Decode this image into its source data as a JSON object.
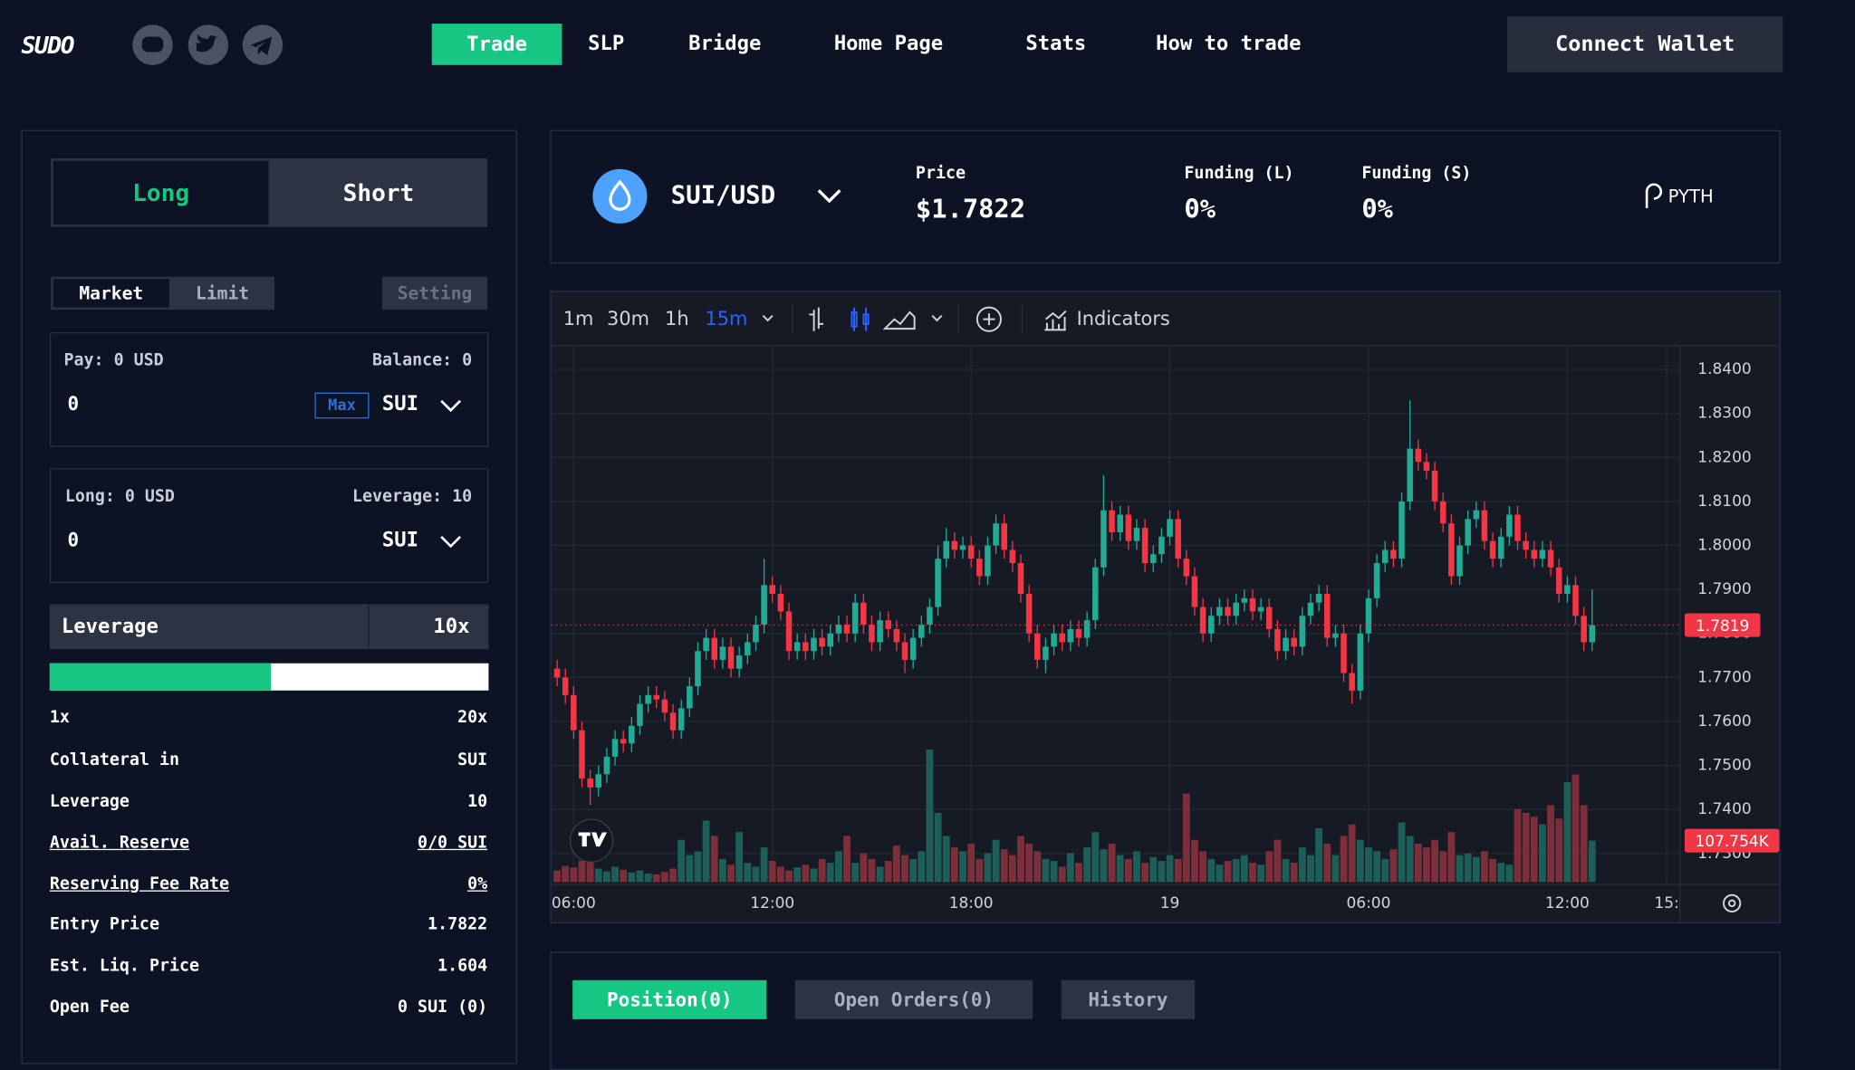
{
  "header": {
    "logo": "SUDO",
    "nav": [
      "Trade",
      "SLP",
      "Bridge",
      "Home Page",
      "Stats",
      "How to trade"
    ],
    "connect": "Connect Wallet"
  },
  "sidebar": {
    "side_tabs": [
      "Long",
      "Short"
    ],
    "order_tabs": [
      "Market",
      "Limit"
    ],
    "setting": "Setting",
    "pay": {
      "label": "Pay: 0 USD",
      "balance": "Balance: 0",
      "amount": "0",
      "max": "Max",
      "token": "SUI"
    },
    "long": {
      "label": "Long: 0 USD",
      "leverage": "Leverage: 10",
      "amount": "0",
      "token": "SUI"
    },
    "leverage": {
      "label": "Leverage",
      "value": "10x",
      "min": "1x",
      "max": "20x"
    },
    "rows": [
      [
        "Collateral in",
        "SUI"
      ],
      [
        "Leverage",
        "10"
      ],
      [
        "Avail. Reserve",
        "0/0 SUI"
      ],
      [
        "Reserving Fee Rate",
        "0%"
      ],
      [
        "Entry Price",
        "1.7822"
      ],
      [
        "Est. Liq. Price",
        "1.604"
      ],
      [
        "Open Fee",
        "0 SUI (0)"
      ]
    ]
  },
  "market": {
    "pair": "SUI/USD",
    "price_label": "Price",
    "price": "$1.7822",
    "funding_l_label": "Funding (L)",
    "funding_l": "0%",
    "funding_s_label": "Funding (S)",
    "funding_s": "0%",
    "oracle": "PYTH"
  },
  "toolbar": {
    "intervals": [
      "1m",
      "30m",
      "1h",
      "15m"
    ],
    "indicators": "Indicators"
  },
  "chart_data": {
    "type": "candlestick",
    "up_color": "#22ab94",
    "down_color": "#f23645",
    "volume_up_color": "#1d5f58",
    "volume_down_color": "#7c2f3a",
    "grid": true,
    "xlim": [
      -0.7,
      135.6
    ],
    "xticks": [
      {
        "value": 2,
        "label": "06:00"
      },
      {
        "value": 26,
        "label": "12:00"
      },
      {
        "value": 50,
        "label": "18:00"
      },
      {
        "value": 74,
        "label": "19"
      },
      {
        "value": 98,
        "label": "06:00"
      },
      {
        "value": 122,
        "label": "12:00"
      },
      {
        "value": 134,
        "label": "15:"
      }
    ],
    "ylim": [
      1.7235,
      1.8455
    ],
    "yticks": [
      {
        "value": 1.84,
        "label": "1.8400"
      },
      {
        "value": 1.83,
        "label": "1.8300"
      },
      {
        "value": 1.82,
        "label": "1.8200"
      },
      {
        "value": 1.81,
        "label": "1.8100"
      },
      {
        "value": 1.8,
        "label": "1.8000"
      },
      {
        "value": 1.79,
        "label": "1.7900"
      },
      {
        "value": 1.78,
        "label": "1.7800"
      },
      {
        "value": 1.77,
        "label": "1.7700"
      },
      {
        "value": 1.76,
        "label": "1.7600"
      },
      {
        "value": 1.75,
        "label": "1.7500"
      },
      {
        "value": 1.74,
        "label": "1.7400"
      },
      {
        "value": 1.73,
        "label": "1.7300"
      }
    ],
    "volume_ylim": [
      0,
      1397000
    ],
    "last_volume": {
      "value": 107754,
      "label": "107.754K"
    },
    "open": [
      1.772,
      1.77,
      1.766,
      1.758,
      1.747,
      1.745,
      1.748,
      1.752,
      1.756,
      1.755,
      1.759,
      1.764,
      1.766,
      1.765,
      1.762,
      1.758,
      1.763,
      1.768,
      1.776,
      1.779,
      1.774,
      1.777,
      1.772,
      1.775,
      1.778,
      1.782,
      1.791,
      1.789,
      1.785,
      1.776,
      1.778,
      1.776,
      1.779,
      1.777,
      1.78,
      1.782,
      1.78,
      1.787,
      1.782,
      1.778,
      1.783,
      1.781,
      1.778,
      1.774,
      1.779,
      1.782,
      1.786,
      1.797,
      1.801,
      1.799,
      1.8,
      1.797,
      1.793,
      1.8,
      1.805,
      1.799,
      1.796,
      1.789,
      1.78,
      1.774,
      1.777,
      1.78,
      1.778,
      1.781,
      1.779,
      1.783,
      1.795,
      1.808,
      1.803,
      1.807,
      1.801,
      1.804,
      1.796,
      1.798,
      1.802,
      1.806,
      1.797,
      1.793,
      1.786,
      1.78,
      1.784,
      1.786,
      1.784,
      1.787,
      1.788,
      1.785,
      1.786,
      1.781,
      1.776,
      1.779,
      1.777,
      1.784,
      1.787,
      1.789,
      1.779,
      1.78,
      1.771,
      1.767,
      1.78,
      1.788,
      1.796,
      1.799,
      1.797,
      1.81,
      1.822,
      1.819,
      1.817,
      1.81,
      1.805,
      1.793,
      1.8,
      1.806,
      1.808,
      1.801,
      1.797,
      1.802,
      1.807,
      1.801,
      1.799,
      1.797,
      1.799,
      1.795,
      1.789,
      1.791,
      1.784,
      1.778
    ],
    "high": [
      1.774,
      1.772,
      1.768,
      1.76,
      1.749,
      1.75,
      1.754,
      1.758,
      1.758,
      1.761,
      1.766,
      1.768,
      1.768,
      1.767,
      1.764,
      1.765,
      1.77,
      1.778,
      1.781,
      1.781,
      1.779,
      1.779,
      1.777,
      1.78,
      1.784,
      1.797,
      1.793,
      1.791,
      1.787,
      1.78,
      1.78,
      1.781,
      1.781,
      1.782,
      1.784,
      1.784,
      1.789,
      1.789,
      1.784,
      1.785,
      1.785,
      1.783,
      1.78,
      1.781,
      1.784,
      1.788,
      1.8,
      1.804,
      1.803,
      1.802,
      1.802,
      1.799,
      1.802,
      1.807,
      1.807,
      1.801,
      1.798,
      1.791,
      1.782,
      1.779,
      1.782,
      1.782,
      1.783,
      1.783,
      1.785,
      1.797,
      1.816,
      1.81,
      1.809,
      1.809,
      1.806,
      1.806,
      1.8,
      1.804,
      1.808,
      1.808,
      1.799,
      1.795,
      1.788,
      1.786,
      1.788,
      1.788,
      1.789,
      1.79,
      1.79,
      1.788,
      1.788,
      1.783,
      1.781,
      1.781,
      1.786,
      1.789,
      1.791,
      1.791,
      1.782,
      1.782,
      1.773,
      1.782,
      1.79,
      1.798,
      1.801,
      1.801,
      1.812,
      1.833,
      1.824,
      1.821,
      1.819,
      1.812,
      1.807,
      1.802,
      1.808,
      1.81,
      1.81,
      1.803,
      1.804,
      1.809,
      1.809,
      1.803,
      1.801,
      1.801,
      1.801,
      1.797,
      1.793,
      1.793,
      1.786,
      1.79
    ],
    "low": [
      1.768,
      1.764,
      1.756,
      1.745,
      1.741,
      1.743,
      1.746,
      1.75,
      1.753,
      1.753,
      1.757,
      1.762,
      1.763,
      1.76,
      1.756,
      1.756,
      1.761,
      1.766,
      1.774,
      1.772,
      1.772,
      1.77,
      1.77,
      1.773,
      1.776,
      1.78,
      1.787,
      1.783,
      1.774,
      1.774,
      1.774,
      1.774,
      1.775,
      1.775,
      1.778,
      1.778,
      1.778,
      1.78,
      1.776,
      1.776,
      1.779,
      1.776,
      1.771,
      1.772,
      1.777,
      1.78,
      1.784,
      1.795,
      1.797,
      1.797,
      1.795,
      1.791,
      1.791,
      1.798,
      1.797,
      1.794,
      1.787,
      1.778,
      1.772,
      1.771,
      1.775,
      1.776,
      1.776,
      1.777,
      1.777,
      1.781,
      1.793,
      1.801,
      1.801,
      1.799,
      1.799,
      1.794,
      1.794,
      1.796,
      1.8,
      1.795,
      1.791,
      1.784,
      1.778,
      1.778,
      1.782,
      1.782,
      1.782,
      1.785,
      1.783,
      1.783,
      1.779,
      1.774,
      1.774,
      1.775,
      1.775,
      1.782,
      1.785,
      1.777,
      1.777,
      1.769,
      1.764,
      1.765,
      1.778,
      1.786,
      1.794,
      1.795,
      1.795,
      1.808,
      1.817,
      1.815,
      1.808,
      1.803,
      1.791,
      1.791,
      1.798,
      1.804,
      1.799,
      1.795,
      1.795,
      1.8,
      1.799,
      1.797,
      1.795,
      1.795,
      1.793,
      1.787,
      1.787,
      1.782,
      1.776,
      1.776
    ],
    "close": [
      1.77,
      1.766,
      1.758,
      1.747,
      1.745,
      1.748,
      1.752,
      1.756,
      1.755,
      1.759,
      1.764,
      1.766,
      1.765,
      1.762,
      1.758,
      1.763,
      1.768,
      1.776,
      1.779,
      1.774,
      1.777,
      1.772,
      1.775,
      1.778,
      1.782,
      1.791,
      1.789,
      1.785,
      1.776,
      1.778,
      1.776,
      1.779,
      1.777,
      1.78,
      1.782,
      1.78,
      1.787,
      1.782,
      1.778,
      1.783,
      1.781,
      1.778,
      1.774,
      1.779,
      1.782,
      1.786,
      1.797,
      1.801,
      1.799,
      1.8,
      1.797,
      1.793,
      1.8,
      1.805,
      1.799,
      1.796,
      1.789,
      1.78,
      1.774,
      1.777,
      1.78,
      1.778,
      1.781,
      1.779,
      1.783,
      1.795,
      1.808,
      1.803,
      1.807,
      1.801,
      1.804,
      1.796,
      1.798,
      1.802,
      1.806,
      1.797,
      1.793,
      1.786,
      1.78,
      1.784,
      1.786,
      1.784,
      1.787,
      1.788,
      1.785,
      1.786,
      1.781,
      1.776,
      1.779,
      1.777,
      1.784,
      1.787,
      1.789,
      1.779,
      1.78,
      1.771,
      1.767,
      1.78,
      1.788,
      1.796,
      1.799,
      1.797,
      1.81,
      1.822,
      1.819,
      1.817,
      1.81,
      1.805,
      1.793,
      1.8,
      1.806,
      1.808,
      1.801,
      1.797,
      1.802,
      1.807,
      1.801,
      1.799,
      1.797,
      1.799,
      1.795,
      1.789,
      1.791,
      1.784,
      1.778,
      1.7819
    ],
    "volume": [
      30000,
      42000,
      38000,
      55000,
      60000,
      35000,
      28000,
      40000,
      32000,
      25000,
      30000,
      22000,
      20000,
      26000,
      35000,
      110000,
      70000,
      80000,
      160000,
      120000,
      60000,
      45000,
      130000,
      50000,
      40000,
      90000,
      55000,
      40000,
      30000,
      38000,
      45000,
      35000,
      60000,
      50000,
      80000,
      120000,
      50000,
      75000,
      60000,
      40000,
      55000,
      95000,
      70000,
      60000,
      80000,
      345000,
      180000,
      120000,
      90000,
      80000,
      100000,
      60000,
      75000,
      110000,
      85000,
      70000,
      120000,
      100000,
      80000,
      60000,
      55000,
      40000,
      75000,
      50000,
      90000,
      130000,
      85000,
      100000,
      70000,
      60000,
      80000,
      50000,
      65000,
      55000,
      70000,
      60000,
      230000,
      110000,
      80000,
      60000,
      45000,
      55000,
      60000,
      70000,
      50000,
      45000,
      80000,
      110000,
      60000,
      50000,
      90000,
      70000,
      140000,
      100000,
      70000,
      120000,
      150000,
      110000,
      90000,
      80000,
      60000,
      85000,
      155000,
      120000,
      100000,
      90000,
      110000,
      80000,
      130000,
      70000,
      75000,
      65000,
      80000,
      60000,
      50000,
      45000,
      190000,
      180000,
      170000,
      150000,
      200000,
      165000,
      260000,
      280000,
      200000,
      107754
    ]
  },
  "tabs": [
    "Position(0)",
    "Open Orders(0)",
    "History"
  ]
}
